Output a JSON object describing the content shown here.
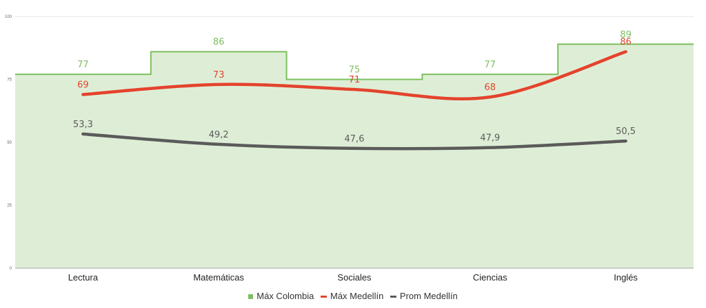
{
  "chart_data": {
    "type": "line",
    "categories": [
      "Lectura",
      "Matemáticas",
      "Sociales",
      "Ciencias",
      "Inglés"
    ],
    "ylim": [
      0,
      100
    ],
    "yticks": [
      0,
      25,
      50,
      75,
      100
    ],
    "grid": true,
    "legend_position": "bottom",
    "series": [
      {
        "name": "Máx Colombia",
        "kind": "step-area",
        "color": "#7cbf5e",
        "fill": "#deeed6",
        "values": [
          77,
          86,
          75,
          77,
          89
        ],
        "labels": [
          "77",
          "86",
          "75",
          "77",
          "89"
        ]
      },
      {
        "name": "Máx Medellín",
        "kind": "smooth-line",
        "color": "#e4432d",
        "values": [
          69,
          73,
          71,
          68,
          86
        ],
        "labels": [
          "69",
          "73",
          "71",
          "68",
          "86"
        ]
      },
      {
        "name": "Prom Medellín",
        "kind": "smooth-line",
        "color": "#5b5b5b",
        "values": [
          53.3,
          49.2,
          47.6,
          47.9,
          50.5
        ],
        "labels": [
          "53,3",
          "49,2",
          "47,6",
          "47,9",
          "50,5"
        ]
      }
    ]
  }
}
